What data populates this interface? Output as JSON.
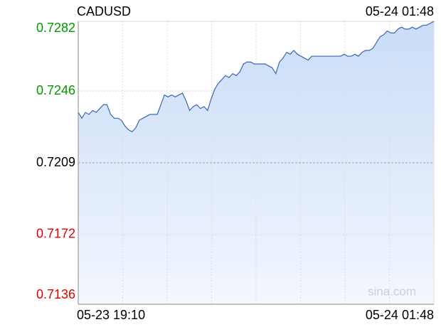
{
  "chart_data": {
    "type": "line",
    "title": "CADUSD",
    "timestamp": "05-24 01:48",
    "watermark": "sina.com",
    "categories": [
      "05-23 19:10",
      null,
      null,
      null,
      null,
      null,
      null,
      null,
      null,
      null,
      null,
      null,
      null,
      null,
      null,
      null,
      null,
      null,
      null,
      null,
      null,
      null,
      null,
      null,
      null,
      null,
      null,
      null,
      null,
      null,
      null,
      null,
      null,
      null,
      null,
      null,
      null,
      null,
      null,
      null,
      null,
      null,
      null,
      null,
      null,
      null,
      null,
      null,
      null,
      null,
      null,
      null,
      null,
      null,
      null,
      null,
      null,
      null,
      null,
      null,
      null,
      null,
      null,
      null,
      null,
      null,
      null,
      null,
      null,
      null,
      null,
      null,
      null,
      null,
      null,
      null,
      null,
      null,
      null,
      null,
      null,
      null,
      null,
      null,
      null,
      null,
      null,
      null,
      null,
      null,
      null,
      null,
      null,
      null,
      null,
      null,
      null,
      null,
      null,
      "05-24 01:48"
    ],
    "series": [
      {
        "name": "CADUSD",
        "color": "#3a66b0",
        "values": [
          0.7235,
          0.7232,
          0.7235,
          0.7234,
          0.7236,
          0.7235,
          0.7237,
          0.7239,
          0.7239,
          0.7234,
          0.7232,
          0.7232,
          0.7231,
          0.7228,
          0.7226,
          0.7225,
          0.7227,
          0.7231,
          0.7232,
          0.7233,
          0.7234,
          0.7234,
          0.7234,
          0.7239,
          0.7244,
          0.7243,
          0.7244,
          0.7243,
          0.7244,
          0.7245,
          0.7241,
          0.7236,
          0.7238,
          0.7239,
          0.7237,
          0.7238,
          0.7236,
          0.7242,
          0.7247,
          0.725,
          0.7252,
          0.7254,
          0.7253,
          0.7255,
          0.7254,
          0.7256,
          0.726,
          0.7261,
          0.7261,
          0.726,
          0.726,
          0.726,
          0.726,
          0.7259,
          0.7258,
          0.7255,
          0.7261,
          0.7263,
          0.7266,
          0.7265,
          0.7267,
          0.7265,
          0.7264,
          0.7263,
          0.7262,
          0.7264,
          0.7264,
          0.7264,
          0.7264,
          0.7264,
          0.7264,
          0.7264,
          0.7264,
          0.7264,
          0.7265,
          0.7264,
          0.7264,
          0.7265,
          0.7264,
          0.7266,
          0.7267,
          0.7267,
          0.7268,
          0.7271,
          0.7274,
          0.7275,
          0.7277,
          0.7276,
          0.7276,
          0.7278,
          0.7279,
          0.7278,
          0.7278,
          0.7279,
          0.7278,
          0.7279,
          0.728,
          0.728,
          0.7281,
          0.7282
        ]
      }
    ],
    "ylim": [
      0.7136,
      0.7282
    ],
    "yticks": [
      0.7136,
      0.7172,
      0.7209,
      0.7246,
      0.7282
    ],
    "reference": 0.7209,
    "up_color": "#009900",
    "down_color": "#e00000",
    "flat_color": "#000000",
    "grid": true
  }
}
